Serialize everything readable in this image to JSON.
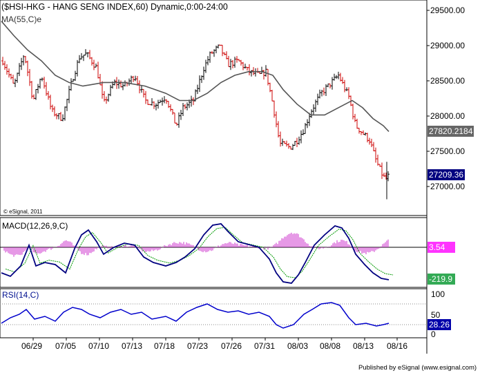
{
  "header": {
    "title": "($HSI-HKG - HANG SENG INDEX,60) Dynamic,0:00-24:00",
    "ma_label": "MA(55,C)e",
    "copyright": "© eSignal, 2011"
  },
  "price_axis": {
    "ticks": [
      "29500.00",
      "29000.00",
      "28500.00",
      "28000.00",
      "27500.00",
      "27000.00"
    ],
    "ma_value": "27820.2184",
    "last_price": "27209.36"
  },
  "macd": {
    "label": "MACD(12,26,9,C)",
    "signal_value": "3.54",
    "macd_value": "-219.9"
  },
  "rsi": {
    "label": "RSI(14,C)",
    "ticks": [
      "100",
      "50",
      "0"
    ],
    "value": "28.26"
  },
  "x_axis": {
    "dates": [
      "06/29",
      "07/05",
      "07/10",
      "07/13",
      "07/18",
      "07/23",
      "07/26",
      "07/31",
      "08/03",
      "08/08",
      "08/13",
      "08/16"
    ]
  },
  "footer": {
    "published": "Published by eSignal (www.esignal.com)"
  },
  "colors": {
    "up_bar": "#000000",
    "down_bar": "#cc0000",
    "ma_line": "#555555",
    "macd_line": "#000080",
    "signal_line": "#009900",
    "histogram": "#cc33cc",
    "rsi_line": "#0000cc",
    "signal_tag": "#ff33ff",
    "macd_tag": "#33aa55",
    "last_tag": "#000080"
  }
}
